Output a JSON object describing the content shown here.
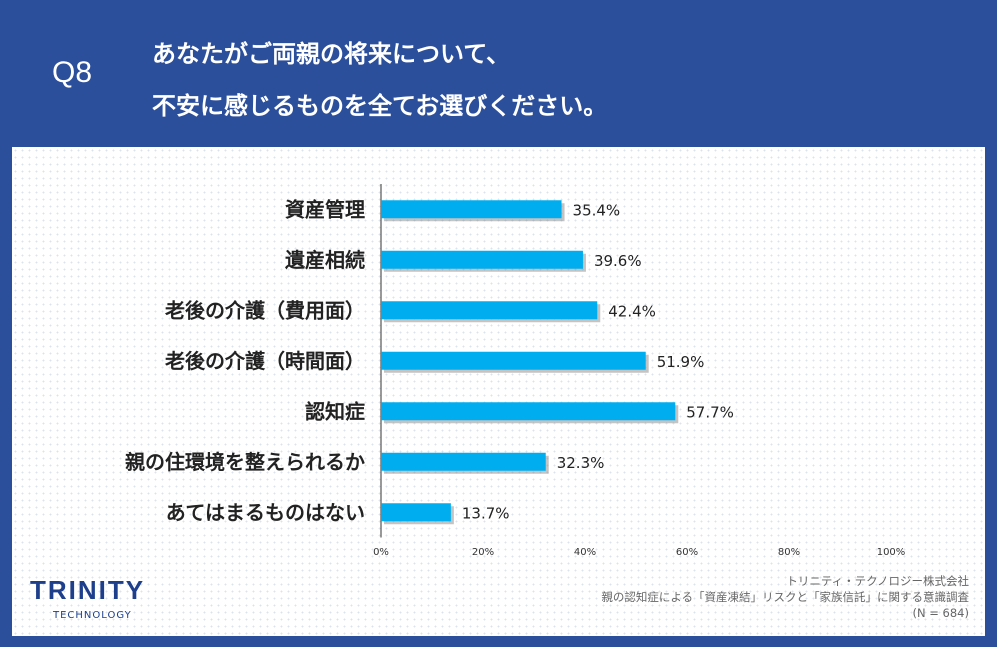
{
  "header": {
    "q": "Q8",
    "line1": "あなたがご両親の将来について、",
    "line2": "不安に感じるものを全てお選びください。"
  },
  "chart_data": {
    "type": "bar",
    "orientation": "horizontal",
    "categories": [
      "資産管理",
      "遺産相続",
      "老後の介護（費用面）",
      "老後の介護（時間面）",
      "認知症",
      "親の住環境を整えられるか",
      "あてはまるものはない"
    ],
    "values": [
      35.4,
      39.6,
      42.4,
      51.9,
      57.7,
      32.3,
      13.7
    ],
    "value_labels": [
      "35.4%",
      "39.6%",
      "42.4%",
      "51.9%",
      "57.7%",
      "32.3%",
      "13.7%"
    ],
    "xlim": [
      0,
      100
    ],
    "ticks": [
      "0%",
      "20%",
      "40%",
      "60%",
      "80%",
      "100%"
    ],
    "bar_color": "#00aeef",
    "grid": false
  },
  "footer": {
    "logo": "TRINITY",
    "logo_sub": "TECHNOLOGY",
    "company": "トリニティ・テクノロジー株式会社",
    "survey": "親の認知症による「資産凍結」リスクと「家族信託」に関する意識調査",
    "n": "(N = 684)"
  }
}
